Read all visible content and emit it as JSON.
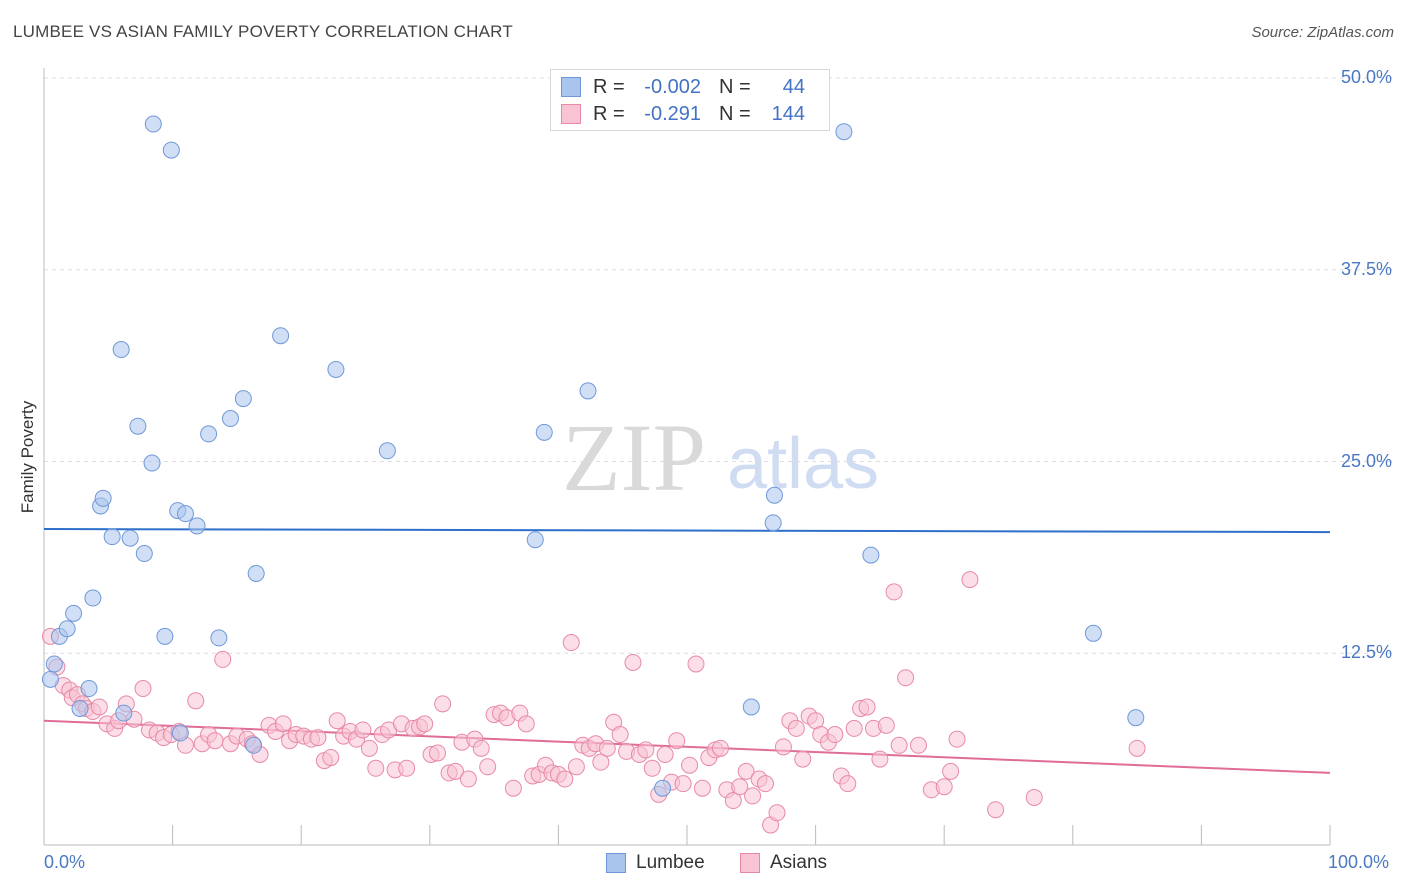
{
  "title": "LUMBEE VS ASIAN FAMILY POVERTY CORRELATION CHART",
  "source": "Source: ZipAtlas.com",
  "watermark": {
    "zip": "ZIP",
    "atlas": "atlas"
  },
  "stats": [
    {
      "r_label": "R =",
      "r_value": "-0.002",
      "n_label": "N =",
      "n_value": "44",
      "color": "#a9c5ee",
      "border": "#6f98d8"
    },
    {
      "r_label": "R =",
      "r_value": "-0.291",
      "n_label": "N =",
      "n_value": "144",
      "color": "#f8c3d3",
      "border": "#e88aa6"
    }
  ],
  "legend": [
    {
      "label": "Lumbee",
      "color": "#a9c5ee",
      "border": "#6f98d8"
    },
    {
      "label": "Asians",
      "color": "#f8c3d3",
      "border": "#e88aa6"
    }
  ],
  "chart_data": {
    "type": "scatter",
    "title": "LUMBEE VS ASIAN FAMILY POVERTY CORRELATION CHART",
    "xlabel": "",
    "ylabel": "Family Poverty",
    "xlim": [
      0,
      100
    ],
    "ylim": [
      0,
      50
    ],
    "x_tick_labels": [
      "0.0%",
      "100.0%"
    ],
    "y_ticks": [
      12.5,
      25.0,
      37.5,
      50.0
    ],
    "y_tick_labels": [
      "12.5%",
      "25.0%",
      "37.5%",
      "50.0%"
    ],
    "grid": true,
    "series": [
      {
        "name": "Lumbee",
        "color": "#a9c5ee",
        "stroke": "#6f98d8",
        "line_color": "#2e6fcc",
        "trend": [
          [
            0,
            20.6
          ],
          [
            100,
            20.4
          ]
        ],
        "points": [
          [
            0.8,
            11.8
          ],
          [
            1.2,
            13.6
          ],
          [
            1.8,
            14.1
          ],
          [
            2.3,
            15.1
          ],
          [
            2.8,
            8.9
          ],
          [
            3.5,
            10.2
          ],
          [
            3.8,
            16.1
          ],
          [
            4.4,
            22.1
          ],
          [
            4.6,
            22.6
          ],
          [
            5.3,
            20.1
          ],
          [
            6.0,
            32.3
          ],
          [
            6.2,
            8.6
          ],
          [
            6.7,
            20.0
          ],
          [
            7.3,
            27.3
          ],
          [
            7.8,
            19.0
          ],
          [
            8.4,
            24.9
          ],
          [
            8.5,
            47.0
          ],
          [
            9.4,
            13.6
          ],
          [
            9.9,
            45.3
          ],
          [
            10.4,
            21.8
          ],
          [
            10.6,
            7.3
          ],
          [
            11.0,
            21.6
          ],
          [
            11.9,
            20.8
          ],
          [
            12.8,
            26.8
          ],
          [
            13.6,
            13.5
          ],
          [
            14.5,
            27.8
          ],
          [
            15.5,
            29.1
          ],
          [
            16.3,
            6.5
          ],
          [
            16.5,
            17.7
          ],
          [
            18.4,
            33.2
          ],
          [
            22.7,
            31.0
          ],
          [
            26.7,
            25.7
          ],
          [
            38.2,
            19.9
          ],
          [
            38.9,
            26.9
          ],
          [
            42.3,
            29.6
          ],
          [
            48.1,
            3.7
          ],
          [
            55.0,
            9.0
          ],
          [
            56.7,
            21.0
          ],
          [
            56.8,
            22.8
          ],
          [
            62.2,
            46.5
          ],
          [
            64.3,
            18.9
          ],
          [
            81.6,
            13.8
          ],
          [
            84.9,
            8.3
          ],
          [
            0.5,
            10.8
          ]
        ]
      },
      {
        "name": "Asians",
        "color": "#f8c3d3",
        "stroke": "#e88aa6",
        "line_color": "#e06c98",
        "trend": [
          [
            0,
            8.1
          ],
          [
            100,
            4.7
          ]
        ],
        "points": [
          [
            0.5,
            13.6
          ],
          [
            1.0,
            11.6
          ],
          [
            1.5,
            10.4
          ],
          [
            2.0,
            10.1
          ],
          [
            2.2,
            9.6
          ],
          [
            2.6,
            9.8
          ],
          [
            3.0,
            9.2
          ],
          [
            3.3,
            8.9
          ],
          [
            3.8,
            8.7
          ],
          [
            4.3,
            9.0
          ],
          [
            4.9,
            7.9
          ],
          [
            5.5,
            7.6
          ],
          [
            5.8,
            8.1
          ],
          [
            6.4,
            9.2
          ],
          [
            7.0,
            8.2
          ],
          [
            7.7,
            10.2
          ],
          [
            8.2,
            7.5
          ],
          [
            8.8,
            7.3
          ],
          [
            9.3,
            7.0
          ],
          [
            9.9,
            7.2
          ],
          [
            10.5,
            7.4
          ],
          [
            11.0,
            6.5
          ],
          [
            11.8,
            9.4
          ],
          [
            12.3,
            6.6
          ],
          [
            12.8,
            7.2
          ],
          [
            13.3,
            6.8
          ],
          [
            13.9,
            12.1
          ],
          [
            14.5,
            6.6
          ],
          [
            15.0,
            7.1
          ],
          [
            15.8,
            6.9
          ],
          [
            16.2,
            6.6
          ],
          [
            16.8,
            5.9
          ],
          [
            17.5,
            7.8
          ],
          [
            18.0,
            7.4
          ],
          [
            18.6,
            7.9
          ],
          [
            19.1,
            6.8
          ],
          [
            19.6,
            7.2
          ],
          [
            20.2,
            7.1
          ],
          [
            20.8,
            6.9
          ],
          [
            21.3,
            7.0
          ],
          [
            21.8,
            5.5
          ],
          [
            22.3,
            5.7
          ],
          [
            22.8,
            8.1
          ],
          [
            23.3,
            7.1
          ],
          [
            23.8,
            7.4
          ],
          [
            24.3,
            6.9
          ],
          [
            24.8,
            7.5
          ],
          [
            25.3,
            6.3
          ],
          [
            25.8,
            5.0
          ],
          [
            26.3,
            7.2
          ],
          [
            26.8,
            7.5
          ],
          [
            27.3,
            4.9
          ],
          [
            27.8,
            7.9
          ],
          [
            28.2,
            5.0
          ],
          [
            28.7,
            7.6
          ],
          [
            29.2,
            7.7
          ],
          [
            29.6,
            7.9
          ],
          [
            30.1,
            5.9
          ],
          [
            30.6,
            6.0
          ],
          [
            31.0,
            9.2
          ],
          [
            31.5,
            4.7
          ],
          [
            32.0,
            4.8
          ],
          [
            32.5,
            6.7
          ],
          [
            33.0,
            4.3
          ],
          [
            33.5,
            6.9
          ],
          [
            34.0,
            6.3
          ],
          [
            34.5,
            5.1
          ],
          [
            35.0,
            8.5
          ],
          [
            35.5,
            8.6
          ],
          [
            36.0,
            8.3
          ],
          [
            36.5,
            3.7
          ],
          [
            37.0,
            8.6
          ],
          [
            37.5,
            7.9
          ],
          [
            38.0,
            4.5
          ],
          [
            38.5,
            4.6
          ],
          [
            39.0,
            5.2
          ],
          [
            39.5,
            4.7
          ],
          [
            40.0,
            4.6
          ],
          [
            40.5,
            4.3
          ],
          [
            41.0,
            13.2
          ],
          [
            41.4,
            5.1
          ],
          [
            41.9,
            6.5
          ],
          [
            42.4,
            6.3
          ],
          [
            42.9,
            6.6
          ],
          [
            43.3,
            5.4
          ],
          [
            43.8,
            6.3
          ],
          [
            44.3,
            8.0
          ],
          [
            44.8,
            7.2
          ],
          [
            45.3,
            6.1
          ],
          [
            45.8,
            11.9
          ],
          [
            46.3,
            5.9
          ],
          [
            46.8,
            6.2
          ],
          [
            47.3,
            5.0
          ],
          [
            47.8,
            3.3
          ],
          [
            48.3,
            5.9
          ],
          [
            48.8,
            4.1
          ],
          [
            49.2,
            6.8
          ],
          [
            49.7,
            4.0
          ],
          [
            50.2,
            5.2
          ],
          [
            50.7,
            11.8
          ],
          [
            51.2,
            3.7
          ],
          [
            51.7,
            5.7
          ],
          [
            52.2,
            6.2
          ],
          [
            52.6,
            6.3
          ],
          [
            53.1,
            3.6
          ],
          [
            53.6,
            2.9
          ],
          [
            54.1,
            3.8
          ],
          [
            54.6,
            4.8
          ],
          [
            55.1,
            3.2
          ],
          [
            55.6,
            4.3
          ],
          [
            56.1,
            4.0
          ],
          [
            56.5,
            1.3
          ],
          [
            57.0,
            2.1
          ],
          [
            57.5,
            6.4
          ],
          [
            58.0,
            8.1
          ],
          [
            58.5,
            7.6
          ],
          [
            59.0,
            5.6
          ],
          [
            59.5,
            8.4
          ],
          [
            60.0,
            8.1
          ],
          [
            60.4,
            7.2
          ],
          [
            61.0,
            6.7
          ],
          [
            61.5,
            7.2
          ],
          [
            62.0,
            4.5
          ],
          [
            62.5,
            4.0
          ],
          [
            63.0,
            7.6
          ],
          [
            63.5,
            8.9
          ],
          [
            64.0,
            9.0
          ],
          [
            64.5,
            7.6
          ],
          [
            65.0,
            5.6
          ],
          [
            65.5,
            7.8
          ],
          [
            66.1,
            16.5
          ],
          [
            66.5,
            6.5
          ],
          [
            67.0,
            10.9
          ],
          [
            68.0,
            6.5
          ],
          [
            69.0,
            3.6
          ],
          [
            70.0,
            3.8
          ],
          [
            70.5,
            4.8
          ],
          [
            71.0,
            6.9
          ],
          [
            72.0,
            17.3
          ],
          [
            74.0,
            2.3
          ],
          [
            77.0,
            3.1
          ],
          [
            85.0,
            6.3
          ]
        ]
      }
    ]
  }
}
